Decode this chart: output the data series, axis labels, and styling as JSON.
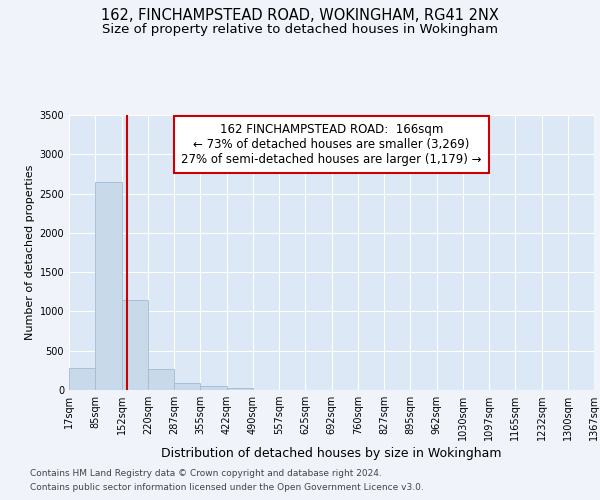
{
  "title": "162, FINCHAMPSTEAD ROAD, WOKINGHAM, RG41 2NX",
  "subtitle": "Size of property relative to detached houses in Wokingham",
  "xlabel": "Distribution of detached houses by size in Wokingham",
  "ylabel": "Number of detached properties",
  "footnote1": "Contains HM Land Registry data © Crown copyright and database right 2024.",
  "footnote2": "Contains public sector information licensed under the Open Government Licence v3.0.",
  "property_label": "162 FINCHAMPSTEAD ROAD:  166sqm",
  "annotation_line1": "← 73% of detached houses are smaller (3,269)",
  "annotation_line2": "27% of semi-detached houses are larger (1,179) →",
  "bin_edges": [
    17,
    85,
    152,
    220,
    287,
    355,
    422,
    490,
    557,
    625,
    692,
    760,
    827,
    895,
    962,
    1030,
    1097,
    1165,
    1232,
    1300,
    1367
  ],
  "bar_heights": [
    275,
    2650,
    1140,
    270,
    95,
    50,
    30,
    5,
    2,
    2,
    1,
    1,
    0,
    0,
    0,
    0,
    0,
    0,
    0,
    0
  ],
  "bar_color": "#c8d9ea",
  "bar_edgecolor": "#a0bcd4",
  "bar_linewidth": 0.6,
  "vline_color": "#cc0000",
  "vline_x": 166,
  "ylim": [
    0,
    3500
  ],
  "yticks": [
    0,
    500,
    1000,
    1500,
    2000,
    2500,
    3000,
    3500
  ],
  "bg_color": "#f0f4fa",
  "plot_bg_color": "#dce8f5",
  "grid_color": "#ffffff",
  "annotation_box_edgecolor": "#cc0000",
  "annotation_box_facecolor": "#ffffff",
  "title_fontsize": 10.5,
  "subtitle_fontsize": 9.5,
  "tick_fontsize": 7,
  "ylabel_fontsize": 8,
  "xlabel_fontsize": 9,
  "annotation_fontsize": 8.5,
  "footnote_fontsize": 6.5
}
